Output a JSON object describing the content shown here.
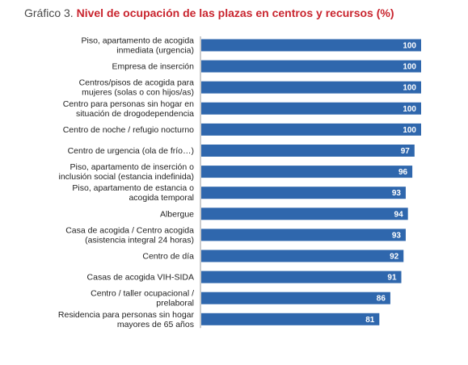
{
  "header": {
    "lead": "Gráfico 3.",
    "title": "Nivel de ocupación de las plazas en centros y recursos (%)"
  },
  "chart_data": {
    "type": "bar",
    "orientation": "horizontal",
    "categories": [
      [
        "Piso, apartamento de acogida",
        "inmediata (urgencia)"
      ],
      [
        "Empresa de inserción"
      ],
      [
        "Centros/pisos de acogida para",
        "mujeres (solas o con hijos/as)"
      ],
      [
        "Centro para personas sin hogar en",
        "situación de drogodependencia"
      ],
      [
        "Centro de noche / refugio nocturno"
      ],
      [
        "Centro de urgencia (ola de frío…)"
      ],
      [
        "Piso, apartamento de inserción o",
        "inclusión social (estancia indefinida)"
      ],
      [
        "Piso, apartamento de estancia o",
        "acogida temporal"
      ],
      [
        "Albergue"
      ],
      [
        "Casa de acogida / Centro acogida",
        "(asistencia integral 24 horas)"
      ],
      [
        "Centro de día"
      ],
      [
        "Casas de acogida VIH-SIDA"
      ],
      [
        "Centro / taller ocupacional /",
        "prelaboral"
      ],
      [
        "Residencia para personas sin hogar",
        "mayores de 65 años"
      ]
    ],
    "values": [
      100,
      100,
      100,
      100,
      100,
      97,
      96,
      93,
      94,
      93,
      92,
      91,
      86,
      81
    ],
    "data_labels": [
      "100",
      "100",
      "100",
      "100",
      "100",
      "97",
      "96",
      "93",
      "94",
      "93",
      "92",
      "91",
      "86",
      "81"
    ],
    "xlim": [
      0,
      100
    ],
    "bar_color": "#2f67ad",
    "label_color": "#ffffff",
    "title_color": "#c9252f"
  }
}
